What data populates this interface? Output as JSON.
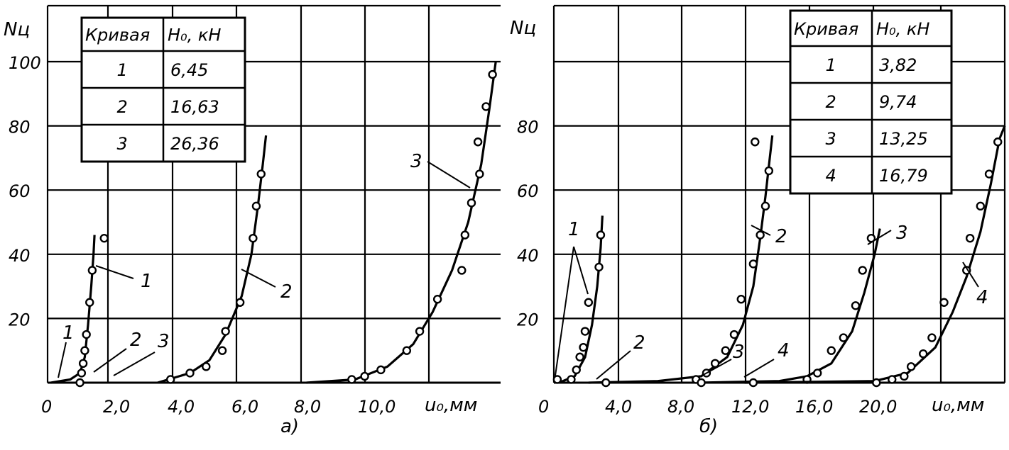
{
  "chart_data": [
    {
      "type": "line",
      "panel_label": "а)",
      "ylabel": "Nц",
      "xlabel": "u₀,мм",
      "xlim": [
        0,
        14.0
      ],
      "ylim": [
        0,
        100
      ],
      "x_ticks": [
        "0",
        "2,0",
        "4,0",
        "6,0",
        "8,0",
        "10,0"
      ],
      "y_ticks": [
        "20",
        "40",
        "60",
        "80",
        "100"
      ],
      "grid": true,
      "table": {
        "headers": [
          "Кривая",
          "H₀, кН"
        ],
        "rows": [
          [
            "1",
            "6,45"
          ],
          [
            "2",
            "16,63"
          ],
          [
            "3",
            "26,36"
          ]
        ]
      },
      "series": [
        {
          "name": "1",
          "curve": [
            [
              0.1,
              0
            ],
            [
              0.7,
              1
            ],
            [
              1.0,
              3
            ],
            [
              1.15,
              8
            ],
            [
              1.25,
              18
            ],
            [
              1.35,
              30
            ],
            [
              1.42,
              40
            ],
            [
              1.45,
              46
            ]
          ],
          "points": [
            [
              1.0,
              0
            ],
            [
              1.05,
              3
            ],
            [
              1.1,
              6
            ],
            [
              1.15,
              10
            ],
            [
              1.2,
              15
            ],
            [
              1.3,
              25
            ],
            [
              1.38,
              35
            ],
            [
              1.75,
              45
            ]
          ]
        },
        {
          "name": "2",
          "curve": [
            [
              3.4,
              0
            ],
            [
              4.4,
              3
            ],
            [
              5.0,
              7
            ],
            [
              5.5,
              15
            ],
            [
              6.0,
              27
            ],
            [
              6.3,
              40
            ],
            [
              6.5,
              55
            ],
            [
              6.65,
              68
            ],
            [
              6.75,
              77
            ]
          ],
          "points": [
            [
              3.8,
              1
            ],
            [
              4.4,
              3
            ],
            [
              4.9,
              5
            ],
            [
              5.4,
              10
            ],
            [
              5.5,
              16
            ],
            [
              5.95,
              25
            ],
            [
              6.35,
              45
            ],
            [
              6.45,
              55
            ],
            [
              6.6,
              65
            ]
          ]
        },
        {
          "name": "3",
          "curve": [
            [
              8.0,
              0
            ],
            [
              9.5,
              1
            ],
            [
              10.5,
              5
            ],
            [
              11.3,
              12
            ],
            [
              11.9,
              22
            ],
            [
              12.5,
              35
            ],
            [
              13.0,
              50
            ],
            [
              13.4,
              68
            ],
            [
              13.65,
              85
            ],
            [
              13.85,
              100
            ]
          ],
          "points": [
            [
              9.4,
              1
            ],
            [
              9.8,
              2
            ],
            [
              10.3,
              4
            ],
            [
              11.1,
              10
            ],
            [
              11.5,
              16
            ],
            [
              12.05,
              26
            ],
            [
              12.8,
              35
            ],
            [
              12.9,
              46
            ],
            [
              13.1,
              56
            ],
            [
              13.35,
              65
            ],
            [
              13.3,
              75
            ],
            [
              13.55,
              86
            ],
            [
              13.75,
              96
            ]
          ]
        }
      ],
      "curve_labels": [
        "1",
        "2",
        "3",
        "1",
        "2",
        "3"
      ]
    },
    {
      "type": "line",
      "panel_label": "б)",
      "ylabel": "Nц",
      "xlabel": "u₀,мм",
      "xlim": [
        0,
        26
      ],
      "ylim": [
        0,
        100
      ],
      "x_ticks": [
        "0",
        "4,0",
        "8,0",
        "12,0",
        "16,0",
        "20,0"
      ],
      "y_ticks": [
        "20",
        "40",
        "60",
        "80"
      ],
      "grid": true,
      "table": {
        "headers": [
          "Кривая",
          "H₀, кН"
        ],
        "rows": [
          [
            "1",
            "3,82"
          ],
          [
            "2",
            "9,74"
          ],
          [
            "3",
            "13,25"
          ],
          [
            "4",
            "16,79"
          ]
        ]
      },
      "series": [
        {
          "name": "1",
          "curve": [
            [
              0.3,
              0
            ],
            [
              1.2,
              2
            ],
            [
              1.8,
              8
            ],
            [
              2.2,
              18
            ],
            [
              2.5,
              30
            ],
            [
              2.7,
              42
            ],
            [
              2.8,
              52
            ]
          ],
          "points": [
            [
              0.2,
              1
            ],
            [
              1.0,
              1
            ],
            [
              1.3,
              4
            ],
            [
              1.5,
              8
            ],
            [
              1.7,
              11
            ],
            [
              1.8,
              16
            ],
            [
              2.0,
              25
            ],
            [
              2.6,
              36
            ],
            [
              2.7,
              46
            ]
          ]
        },
        {
          "name": "2",
          "curve": [
            [
              2.0,
              0
            ],
            [
              6.0,
              0.5
            ],
            [
              8.5,
              2
            ],
            [
              10.0,
              8
            ],
            [
              10.9,
              18
            ],
            [
              11.5,
              30
            ],
            [
              11.9,
              45
            ],
            [
              12.2,
              58
            ],
            [
              12.45,
              70
            ],
            [
              12.6,
              77
            ]
          ],
          "points": [
            [
              3.0,
              0
            ],
            [
              8.2,
              1
            ],
            [
              8.8,
              3
            ],
            [
              9.3,
              6
            ],
            [
              9.9,
              10
            ],
            [
              10.4,
              15
            ],
            [
              10.8,
              26
            ],
            [
              11.5,
              37
            ],
            [
              11.9,
              46
            ],
            [
              12.2,
              55
            ],
            [
              12.4,
              66
            ],
            [
              11.6,
              75
            ]
          ]
        },
        {
          "name": "3",
          "curve": [
            [
              8.4,
              0
            ],
            [
              13.0,
              0.5
            ],
            [
              14.6,
              2
            ],
            [
              16.0,
              6
            ],
            [
              17.2,
              16
            ],
            [
              17.9,
              28
            ],
            [
              18.5,
              40
            ],
            [
              18.8,
              48
            ]
          ],
          "points": [
            [
              8.5,
              0
            ],
            [
              14.6,
              1
            ],
            [
              15.2,
              3
            ],
            [
              16.0,
              10
            ],
            [
              16.7,
              14
            ],
            [
              17.4,
              24
            ],
            [
              17.8,
              35
            ],
            [
              18.3,
              45
            ]
          ]
        },
        {
          "name": "4",
          "curve": [
            [
              11.0,
              0
            ],
            [
              18.5,
              0.5
            ],
            [
              20.4,
              3
            ],
            [
              22.0,
              11
            ],
            [
              23.0,
              22
            ],
            [
              23.8,
              33
            ],
            [
              24.6,
              47
            ],
            [
              25.2,
              62
            ],
            [
              25.7,
              76
            ],
            [
              26.0,
              80
            ]
          ],
          "points": [
            [
              11.5,
              0
            ],
            [
              18.6,
              0
            ],
            [
              19.5,
              1
            ],
            [
              20.2,
              2
            ],
            [
              20.6,
              5
            ],
            [
              21.3,
              9
            ],
            [
              21.8,
              14
            ],
            [
              22.5,
              25
            ],
            [
              23.8,
              35
            ],
            [
              24.0,
              45
            ],
            [
              24.6,
              55
            ],
            [
              25.1,
              65
            ],
            [
              25.6,
              75
            ]
          ]
        }
      ],
      "curve_labels": [
        "1",
        "2",
        "3",
        "4",
        "2",
        "3",
        "4"
      ]
    }
  ]
}
